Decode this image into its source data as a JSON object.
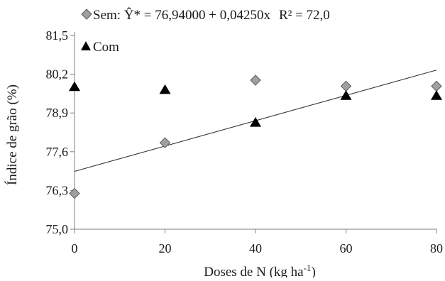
{
  "chart_data": {
    "type": "scatter",
    "xlabel": "Doses de N (kg ha",
    "xlabel_sup": "-1",
    "xlabel_close": ")",
    "ylabel": "Índice de grão (%)",
    "x_ticks": [
      "0",
      "20",
      "40",
      "60",
      "80"
    ],
    "y_ticks": [
      "75,0",
      "76,3",
      "77,6",
      "78,9",
      "80,2",
      "81,5"
    ],
    "x_tick_values": [
      0,
      20,
      40,
      60,
      80
    ],
    "y_tick_values": [
      75.0,
      76.3,
      77.6,
      78.9,
      80.2,
      81.5
    ],
    "xlim": [
      0,
      80
    ],
    "ylim": [
      75.0,
      81.5
    ],
    "grid": false,
    "legend_position": "top-left",
    "series": [
      {
        "name": "Sem",
        "marker": "diamond",
        "color": "#a0a0a0",
        "x": [
          0,
          20,
          40,
          60,
          80
        ],
        "y": [
          76.2,
          77.9,
          80.0,
          79.8,
          79.8
        ],
        "fit": {
          "intercept": 76.94,
          "slope": 0.0425
        }
      },
      {
        "name": "Com",
        "marker": "triangle",
        "color": "#000000",
        "x": [
          0,
          20,
          40,
          60,
          80
        ],
        "y": [
          79.8,
          79.7,
          78.6,
          79.5,
          79.5
        ]
      }
    ],
    "legend": {
      "sem_label": "Sem: ",
      "equation": "Ŷ* = 76,94000 + 0,04250x",
      "r2": "R² = 72,0",
      "com_label": "Com"
    }
  }
}
